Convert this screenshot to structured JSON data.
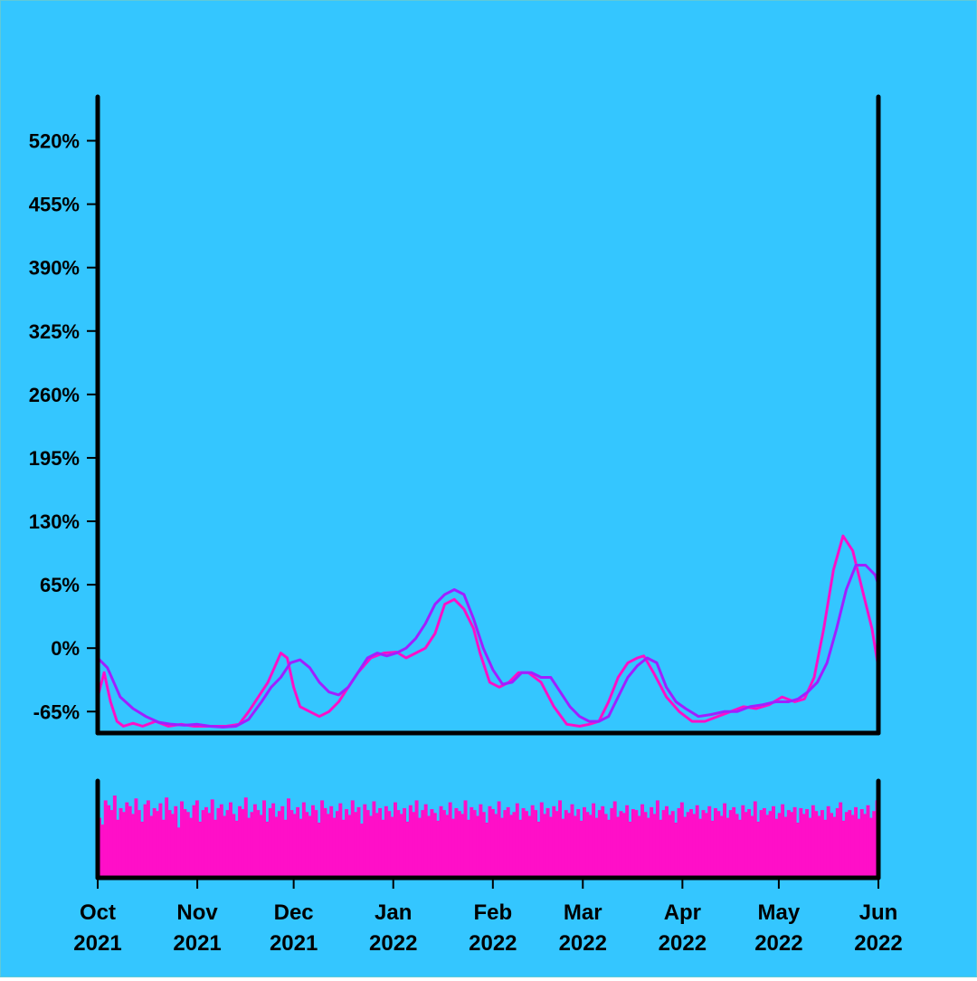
{
  "colors": {
    "background": "#34c6ff",
    "primary_series": "#ff0fc8",
    "secondary_series": "#a020ff",
    "volume_bars": "#ff0fc8",
    "axis": "#000000"
  },
  "chart_data": {
    "type": "line",
    "title": "",
    "xlabel": "",
    "ylabel": "",
    "grid": false,
    "legend": "none",
    "x_range": [
      "2021-10-01",
      "2022-06-01"
    ],
    "ylim": [
      -87,
      565
    ],
    "yticks": [
      -65,
      0,
      65,
      130,
      195,
      260,
      325,
      390,
      455,
      520
    ],
    "ytick_labels": [
      "-65%",
      "0%",
      "65%",
      "130%",
      "195%",
      "260%",
      "325%",
      "390%",
      "455%",
      "520%"
    ],
    "xticks": [
      {
        "date": "2021-10-01",
        "month": "Oct",
        "year": "2021"
      },
      {
        "date": "2021-11-01",
        "month": "Nov",
        "year": "2021"
      },
      {
        "date": "2021-12-01",
        "month": "Dec",
        "year": "2021"
      },
      {
        "date": "2022-01-01",
        "month": "Jan",
        "year": "2022"
      },
      {
        "date": "2022-02-01",
        "month": "Feb",
        "year": "2022"
      },
      {
        "date": "2022-03-01",
        "month": "Mar",
        "year": "2022"
      },
      {
        "date": "2022-04-01",
        "month": "Apr",
        "year": "2022"
      },
      {
        "date": "2022-05-01",
        "month": "May",
        "year": "2022"
      },
      {
        "date": "2022-06-01",
        "month": "Jun",
        "year": "2022"
      }
    ],
    "series": [
      {
        "x": [
          "2021-10-01",
          "2021-10-03",
          "2021-10-05",
          "2021-10-07",
          "2021-10-09",
          "2021-10-12",
          "2021-10-15",
          "2021-10-19",
          "2021-10-23",
          "2021-10-27",
          "2021-10-31",
          "2021-11-03",
          "2021-11-06",
          "2021-11-10",
          "2021-11-14",
          "2021-11-17",
          "2021-11-20",
          "2021-11-23",
          "2021-11-25",
          "2021-11-27",
          "2021-11-29",
          "2021-12-01",
          "2021-12-03",
          "2021-12-06",
          "2021-12-09",
          "2021-12-12",
          "2021-12-15",
          "2021-12-18",
          "2021-12-21",
          "2021-12-25",
          "2021-12-29",
          "2022-01-02",
          "2022-01-05",
          "2022-01-08",
          "2022-01-11",
          "2022-01-14",
          "2022-01-17",
          "2022-01-20",
          "2022-01-23",
          "2022-01-26",
          "2022-01-28",
          "2022-01-31",
          "2022-02-03",
          "2022-02-06",
          "2022-02-09",
          "2022-02-12",
          "2022-02-16",
          "2022-02-20",
          "2022-02-24",
          "2022-02-28",
          "2022-03-03",
          "2022-03-06",
          "2022-03-09",
          "2022-03-12",
          "2022-03-15",
          "2022-03-18",
          "2022-03-20",
          "2022-03-23",
          "2022-03-27",
          "2022-03-31",
          "2022-04-04",
          "2022-04-08",
          "2022-04-12",
          "2022-04-16",
          "2022-04-20",
          "2022-04-24",
          "2022-04-28",
          "2022-05-02",
          "2022-05-06",
          "2022-05-09",
          "2022-05-12",
          "2022-05-15",
          "2022-05-18",
          "2022-05-21",
          "2022-05-24",
          "2022-05-27",
          "2022-05-30",
          "2022-06-01"
        ],
        "values": [
          -50,
          -25,
          -55,
          -75,
          -80,
          -77,
          -80,
          -75,
          -80,
          -78,
          -80,
          -80,
          -80,
          -80,
          -78,
          -65,
          -50,
          -35,
          -20,
          -5,
          -10,
          -40,
          -60,
          -65,
          -70,
          -65,
          -55,
          -40,
          -25,
          -10,
          -5,
          -4,
          -10,
          -5,
          0,
          15,
          45,
          50,
          40,
          20,
          -5,
          -35,
          -40,
          -35,
          -25,
          -25,
          -35,
          -60,
          -78,
          -80,
          -78,
          -75,
          -55,
          -30,
          -15,
          -10,
          -8,
          -25,
          -50,
          -65,
          -75,
          -75,
          -70,
          -65,
          -60,
          -62,
          -58,
          -50,
          -55,
          -52,
          -30,
          20,
          80,
          115,
          100,
          60,
          20,
          -20
        ]
      },
      {
        "x": [
          "2021-10-01",
          "2021-10-04",
          "2021-10-08",
          "2021-10-12",
          "2021-10-16",
          "2021-10-20",
          "2021-10-24",
          "2021-10-28",
          "2021-11-01",
          "2021-11-05",
          "2021-11-09",
          "2021-11-13",
          "2021-11-17",
          "2021-11-21",
          "2021-11-24",
          "2021-11-27",
          "2021-11-30",
          "2021-12-03",
          "2021-12-06",
          "2021-12-09",
          "2021-12-12",
          "2021-12-15",
          "2021-12-18",
          "2021-12-21",
          "2021-12-24",
          "2021-12-27",
          "2021-12-30",
          "2022-01-02",
          "2022-01-05",
          "2022-01-08",
          "2022-01-11",
          "2022-01-14",
          "2022-01-17",
          "2022-01-20",
          "2022-01-23",
          "2022-01-26",
          "2022-01-29",
          "2022-02-01",
          "2022-02-04",
          "2022-02-07",
          "2022-02-10",
          "2022-02-13",
          "2022-02-16",
          "2022-02-19",
          "2022-02-22",
          "2022-02-25",
          "2022-02-28",
          "2022-03-03",
          "2022-03-06",
          "2022-03-09",
          "2022-03-12",
          "2022-03-15",
          "2022-03-18",
          "2022-03-21",
          "2022-03-24",
          "2022-03-27",
          "2022-03-30",
          "2022-04-02",
          "2022-04-06",
          "2022-04-10",
          "2022-04-14",
          "2022-04-18",
          "2022-04-22",
          "2022-04-26",
          "2022-04-30",
          "2022-05-04",
          "2022-05-07",
          "2022-05-10",
          "2022-05-13",
          "2022-05-16",
          "2022-05-19",
          "2022-05-22",
          "2022-05-25",
          "2022-05-28",
          "2022-05-31",
          "2022-06-01"
        ],
        "values": [
          -10,
          -20,
          -50,
          -62,
          -70,
          -76,
          -78,
          -79,
          -78,
          -80,
          -81,
          -80,
          -73,
          -55,
          -40,
          -30,
          -15,
          -12,
          -20,
          -35,
          -45,
          -48,
          -40,
          -25,
          -10,
          -5,
          -8,
          -5,
          0,
          10,
          25,
          45,
          55,
          60,
          55,
          30,
          0,
          -22,
          -37,
          -35,
          -25,
          -25,
          -30,
          -30,
          -45,
          -60,
          -70,
          -75,
          -75,
          -70,
          -50,
          -30,
          -18,
          -10,
          -15,
          -40,
          -55,
          -62,
          -70,
          -68,
          -65,
          -65,
          -60,
          -58,
          -55,
          -55,
          -52,
          -45,
          -35,
          -15,
          20,
          60,
          85,
          85,
          75,
          65
        ]
      },
      {
        "name": "volume",
        "x_range": [
          "2021-10-01",
          "2022-06-01"
        ],
        "values": [
          0.62,
          0.55,
          0.8,
          0.75,
          0.7,
          0.85,
          0.6,
          0.72,
          0.68,
          0.78,
          0.74,
          0.66,
          0.82,
          0.7,
          0.58,
          0.76,
          0.8,
          0.64,
          0.72,
          0.69,
          0.77,
          0.6,
          0.83,
          0.7,
          0.66,
          0.74,
          0.52,
          0.79,
          0.71,
          0.68,
          0.62,
          0.75,
          0.8,
          0.58,
          0.7,
          0.73,
          0.67,
          0.81,
          0.6,
          0.72,
          0.76,
          0.64,
          0.7,
          0.78,
          0.66,
          0.59,
          0.74,
          0.71,
          0.83,
          0.62,
          0.68,
          0.76,
          0.7,
          0.65,
          0.8,
          0.58,
          0.72,
          0.77,
          0.63,
          0.69,
          0.74,
          0.6,
          0.82,
          0.7,
          0.66,
          0.73,
          0.61,
          0.78,
          0.68,
          0.64,
          0.75,
          0.7,
          0.57,
          0.8,
          0.72,
          0.66,
          0.74,
          0.62,
          0.69,
          0.77,
          0.6,
          0.71,
          0.65,
          0.8,
          0.68,
          0.73,
          0.56,
          0.76,
          0.7,
          0.64,
          0.79,
          0.67,
          0.72,
          0.6,
          0.74,
          0.69,
          0.63,
          0.78,
          0.7,
          0.66,
          0.72,
          0.58,
          0.75,
          0.68,
          0.8,
          0.62,
          0.7,
          0.76,
          0.64,
          0.71,
          0.67,
          0.59,
          0.74,
          0.7,
          0.65,
          0.78,
          0.61,
          0.72,
          0.69,
          0.66,
          0.8,
          0.6,
          0.73,
          0.7,
          0.64,
          0.76,
          0.68,
          0.57,
          0.74,
          0.71,
          0.66,
          0.79,
          0.62,
          0.7,
          0.73,
          0.65,
          0.68,
          0.77,
          0.6,
          0.72,
          0.69,
          0.64,
          0.75,
          0.7,
          0.58,
          0.78,
          0.66,
          0.72,
          0.63,
          0.74,
          0.69,
          0.8,
          0.61,
          0.7,
          0.67,
          0.76,
          0.64,
          0.71,
          0.59,
          0.73,
          0.68,
          0.65,
          0.77,
          0.62,
          0.7,
          0.74,
          0.66,
          0.6,
          0.72,
          0.79,
          0.63,
          0.69,
          0.67,
          0.75,
          0.58,
          0.71,
          0.7,
          0.64,
          0.76,
          0.68,
          0.62,
          0.73,
          0.66,
          0.8,
          0.6,
          0.7,
          0.74,
          0.65,
          0.69,
          0.57,
          0.72,
          0.78,
          0.63,
          0.68,
          0.71,
          0.66,
          0.75,
          0.61,
          0.7,
          0.67,
          0.74,
          0.59,
          0.72,
          0.69,
          0.64,
          0.77,
          0.62,
          0.7,
          0.73,
          0.66,
          0.6,
          0.75,
          0.68,
          0.71,
          0.64,
          0.79,
          0.58,
          0.7,
          0.72,
          0.65,
          0.69,
          0.74,
          0.61,
          0.67,
          0.76,
          0.63,
          0.7,
          0.68,
          0.73,
          0.57,
          0.72,
          0.66,
          0.71,
          0.62,
          0.75,
          0.69,
          0.64,
          0.7,
          0.6,
          0.74,
          0.67,
          0.63,
          0.72,
          0.78,
          0.59,
          0.68,
          0.7,
          0.65,
          0.73,
          0.61,
          0.71,
          0.66,
          0.75,
          0.62,
          0.69,
          0.8
        ]
      }
    ]
  }
}
